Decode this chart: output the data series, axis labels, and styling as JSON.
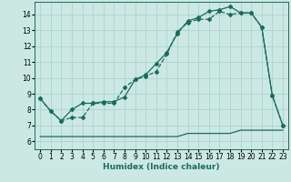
{
  "xlabel": "Humidex (Indice chaleur)",
  "ylabel": "",
  "background_color": "#cce8e3",
  "grid_color": "#aad4ce",
  "line_color": "#1a6b60",
  "xlim": [
    -0.5,
    23.5
  ],
  "ylim": [
    5.5,
    14.8
  ],
  "yticks": [
    6,
    7,
    8,
    9,
    10,
    11,
    12,
    13,
    14
  ],
  "xticks": [
    0,
    1,
    2,
    3,
    4,
    5,
    6,
    7,
    8,
    9,
    10,
    11,
    12,
    13,
    14,
    15,
    16,
    17,
    18,
    19,
    20,
    21,
    22,
    23
  ],
  "line1_x": [
    0,
    1,
    2,
    3,
    4,
    5,
    6,
    7,
    8,
    9,
    10,
    11,
    12,
    13,
    14,
    15,
    16,
    17,
    18,
    19,
    20,
    21,
    22,
    23
  ],
  "line1_y": [
    8.7,
    7.9,
    7.3,
    7.5,
    7.5,
    8.4,
    8.4,
    8.4,
    9.4,
    9.9,
    10.1,
    10.4,
    11.5,
    12.9,
    13.5,
    13.7,
    13.7,
    14.2,
    14.0,
    14.1,
    14.1,
    13.2,
    8.9,
    7.0
  ],
  "line2_x": [
    0,
    1,
    2,
    3,
    4,
    5,
    6,
    7,
    8,
    9,
    10,
    11,
    12,
    13,
    14,
    15,
    16,
    17,
    18,
    19,
    20,
    21,
    22,
    23
  ],
  "line2_y": [
    8.7,
    7.9,
    7.3,
    8.0,
    8.4,
    8.4,
    8.5,
    8.5,
    8.8,
    9.9,
    10.2,
    10.9,
    11.6,
    12.8,
    13.6,
    13.8,
    14.2,
    14.3,
    14.5,
    14.1,
    14.1,
    13.2,
    8.9,
    7.0
  ],
  "line3_x": [
    0,
    1,
    2,
    3,
    4,
    5,
    6,
    7,
    8,
    9,
    10,
    11,
    12,
    13,
    14,
    15,
    16,
    17,
    18,
    19,
    20,
    21,
    22,
    23
  ],
  "line3_y": [
    6.3,
    6.3,
    6.3,
    6.3,
    6.3,
    6.3,
    6.3,
    6.3,
    6.3,
    6.3,
    6.3,
    6.3,
    6.3,
    6.3,
    6.5,
    6.5,
    6.5,
    6.5,
    6.5,
    6.7,
    6.7,
    6.7,
    6.7,
    6.7
  ],
  "marker": "D",
  "markersize": 2.0,
  "linewidth": 0.9,
  "xlabel_fontsize": 6.5,
  "tick_fontsize": 5.5
}
